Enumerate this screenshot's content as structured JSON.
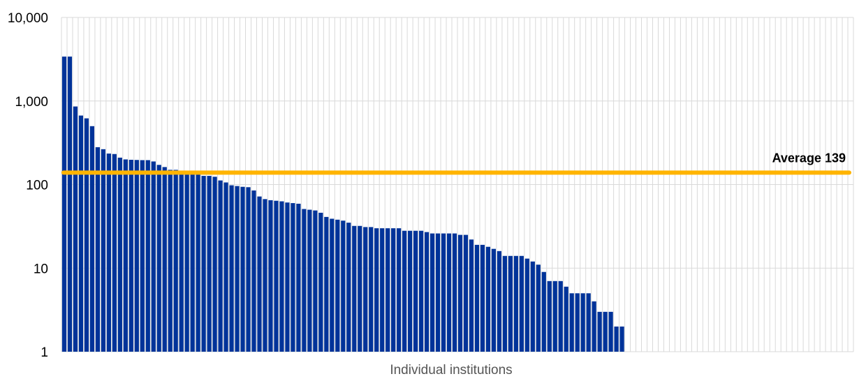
{
  "chart_data": {
    "type": "bar",
    "scale": "log",
    "ylim": [
      1,
      10000
    ],
    "y_ticks": [
      1,
      10,
      100,
      1000,
      10000
    ],
    "y_tick_labels": [
      "1",
      "10",
      "100",
      "1,000",
      "10,000"
    ],
    "xlabel": "Individual institutions",
    "ylabel": "",
    "total_slots": 142,
    "grid": true,
    "colors": {
      "bar": "#003399",
      "average_line": "#ffb400",
      "grid": "#d9d9d9"
    },
    "average": {
      "value": 139,
      "label": "Average 139"
    },
    "values": [
      3400,
      3400,
      860,
      670,
      620,
      500,
      280,
      265,
      235,
      232,
      210,
      200,
      198,
      197,
      196,
      196,
      189,
      172,
      162,
      150,
      150,
      140,
      138,
      135,
      132,
      127,
      127,
      124,
      112,
      106,
      98,
      96,
      94,
      93,
      85,
      72,
      67,
      65,
      64,
      63,
      61,
      60,
      59,
      51,
      50,
      49,
      46,
      41,
      39,
      38,
      37,
      35,
      32,
      32,
      31,
      31,
      30,
      30,
      30,
      30,
      30,
      28,
      28,
      28,
      28,
      27,
      26,
      26,
      26,
      26,
      26,
      25,
      25,
      22,
      19,
      19,
      18,
      17,
      16,
      14,
      14,
      14,
      14,
      13,
      12,
      11,
      9,
      7,
      7,
      7,
      6,
      5,
      5,
      5,
      5,
      4,
      3,
      3,
      3,
      2,
      2
    ]
  }
}
